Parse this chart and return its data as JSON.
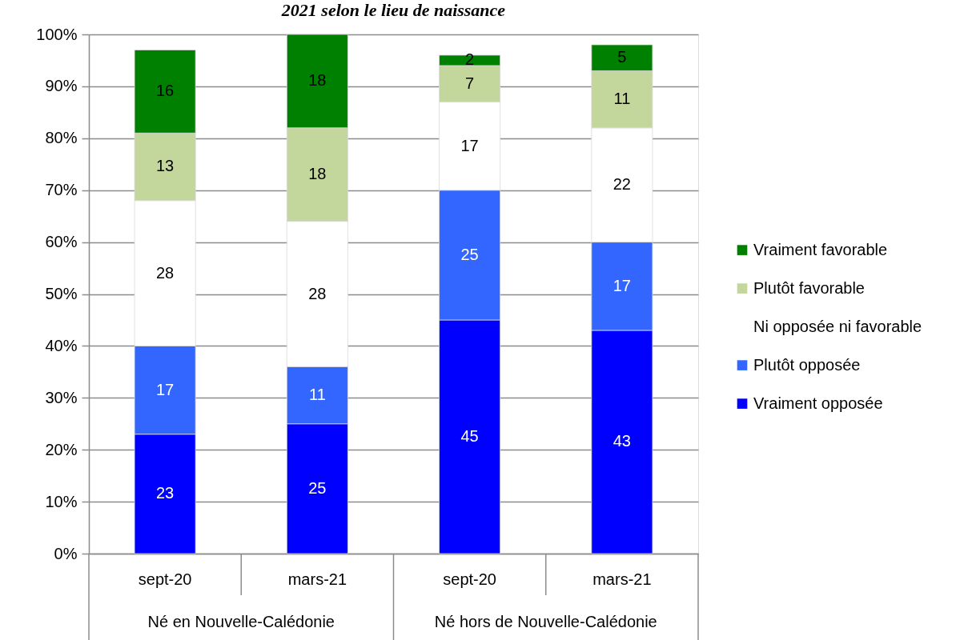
{
  "chart_data": {
    "type": "bar",
    "title": "2021 selon le lieu de naissance",
    "categories": [
      "sept-20",
      "mars-21",
      "sept-20",
      "mars-21"
    ],
    "stacked": true,
    "series": [
      {
        "name": "Vraiment opposée",
        "color": "#0000ff",
        "values": [
          23,
          25,
          45,
          43
        ]
      },
      {
        "name": "Plutôt opposée",
        "color": "#3366ff",
        "values": [
          17,
          11,
          25,
          17
        ]
      },
      {
        "name": "Ni opposée ni favorable",
        "color": "#ffffff",
        "values": [
          28,
          28,
          17,
          22
        ]
      },
      {
        "name": "Plutôt favorable",
        "color": "#c3d69b",
        "values": [
          13,
          18,
          7,
          11
        ]
      },
      {
        "name": "Vraiment favorable",
        "color": "#008000",
        "values": [
          16,
          18,
          2,
          5
        ]
      }
    ],
    "data_labels": true,
    "ylim": [
      0,
      100
    ],
    "yticks": [
      {
        "value": 0,
        "label": "0%"
      },
      {
        "value": 10,
        "label": "10%"
      },
      {
        "value": 20,
        "label": "20%"
      },
      {
        "value": 30,
        "label": "30%"
      },
      {
        "value": 40,
        "label": "40%"
      },
      {
        "value": 50,
        "label": "50%"
      },
      {
        "value": 60,
        "label": "60%"
      },
      {
        "value": 70,
        "label": "70%"
      },
      {
        "value": 80,
        "label": "80%"
      },
      {
        "value": 90,
        "label": "90%"
      },
      {
        "value": 100,
        "label": "100%"
      }
    ],
    "grid": "y",
    "legend": "right",
    "annotations": [
      "Né en Nouvelle-Calédonie",
      "Né hors de Nouvelle-Calédonie"
    ]
  }
}
